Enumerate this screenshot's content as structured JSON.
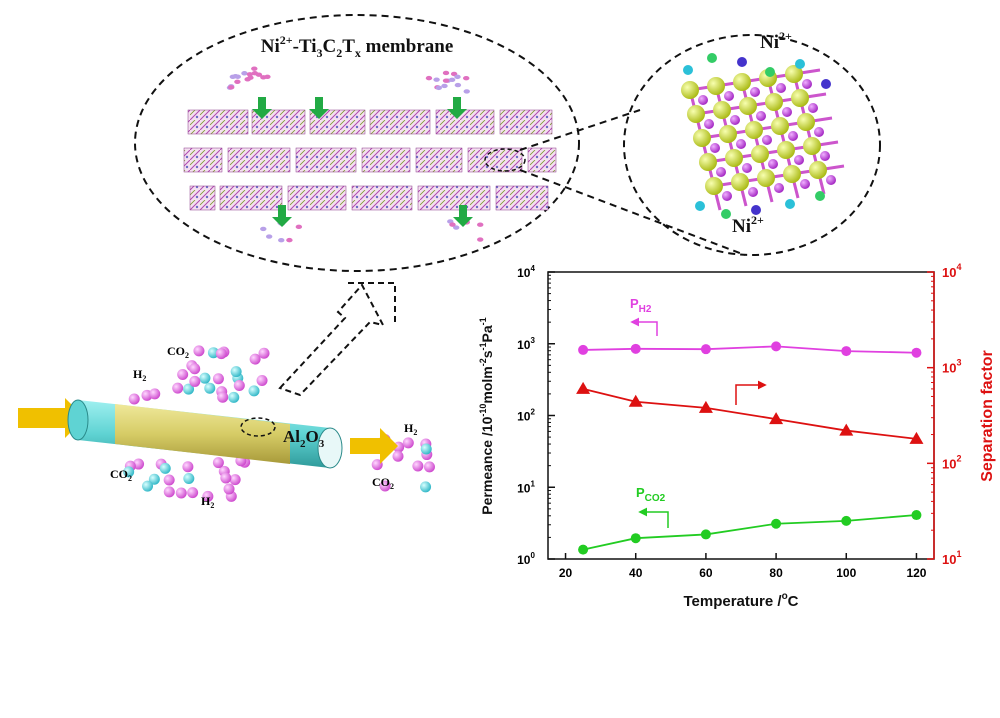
{
  "membrane_panel": {
    "title_prefix": "Ni",
    "title_sup": "2+",
    "title_rest": "-Ti",
    "title_sub3": "3",
    "title_c": "C",
    "title_sub2": "2",
    "title_t": "T",
    "title_subx": "x",
    "title_suffix": " membrane"
  },
  "crystal_panel": {
    "label_top": "Ni",
    "label_top_sup": "2+",
    "label_bottom": "Ni",
    "label_bottom_sup": "2+"
  },
  "tube": {
    "support_label": "Al",
    "support_sub2": "2",
    "support_o": "O",
    "support_sub3": "3",
    "gas_labels": {
      "co2_a": "CO",
      "co2_a_sub": "2",
      "h2_a": "H",
      "h2_a_sub": "2",
      "co2_b": "CO",
      "co2_b_sub": "2",
      "h2_b": "H",
      "h2_b_sub": "2",
      "h2_c": "H",
      "h2_c_sub": "2",
      "co2_c": "CO",
      "co2_c_sub": "2"
    }
  },
  "colors": {
    "ph2": "#e040e0",
    "pco2": "#22cc22",
    "separation": "#dd1111",
    "tube_outer": "#d8d070",
    "tube_inner": "#5fd3d3",
    "arrow": "#f0c000",
    "green_arrow": "#22aa44"
  },
  "chart_data": {
    "type": "line",
    "xlabel": "Temperature /",
    "xlabel_unit": "C",
    "xlabel_deg": "o",
    "ylabel": "Permeance /10",
    "ylabel_exp": "-10",
    "ylabel_rest": "molm",
    "ylabel_m2": "-2",
    "ylabel_s": "s",
    "ylabel_s1": "-1",
    "ylabel_pa": "Pa",
    "ylabel_pa1": "-1",
    "y2label": "Separation factor",
    "x_ticks": [
      20,
      40,
      60,
      80,
      100,
      120
    ],
    "xlim": [
      15,
      125
    ],
    "ylim_log": [
      1,
      10000
    ],
    "y2lim_log": [
      10,
      10000
    ],
    "y_ticks": [
      "10",
      "10",
      "10",
      "10",
      "10"
    ],
    "y_tick_exps": [
      "0",
      "1",
      "2",
      "3",
      "4"
    ],
    "y2_ticks": [
      "10",
      "10",
      "10",
      "10"
    ],
    "y2_tick_exps": [
      "1",
      "2",
      "3",
      "4"
    ],
    "series": [
      {
        "name": "P",
        "name_sub": "H2",
        "axis": "left",
        "marker": "circle",
        "x": [
          25,
          40,
          60,
          80,
          100,
          120
        ],
        "y": [
          820,
          850,
          840,
          920,
          790,
          750
        ]
      },
      {
        "name": "P",
        "name_sub": "CO2",
        "axis": "left",
        "marker": "circle",
        "x": [
          25,
          40,
          60,
          80,
          100,
          120
        ],
        "y": [
          1.35,
          1.95,
          2.2,
          3.1,
          3.4,
          4.1
        ]
      },
      {
        "axis": "right",
        "marker": "triangle",
        "x": [
          25,
          40,
          60,
          80,
          100,
          120
        ],
        "y": [
          600,
          440,
          380,
          290,
          220,
          180
        ]
      }
    ]
  }
}
